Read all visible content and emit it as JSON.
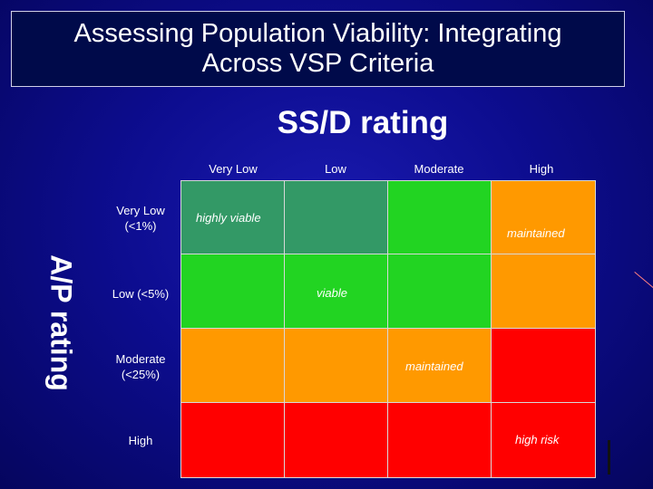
{
  "title": {
    "line1": "Assessing Population Viability:  Integrating",
    "line2": "Across VSP Criteria"
  },
  "x_axis_title": "SS/D rating",
  "y_axis_title": "A/P rating",
  "columns": [
    "Very Low",
    "Low",
    "Moderate",
    "High"
  ],
  "rows": [
    {
      "line1": "Very Low",
      "line2": "(<1%)"
    },
    {
      "line1": "Low (<5%)",
      "line2": ""
    },
    {
      "line1": "Moderate",
      "line2": "(<25%)"
    },
    {
      "line1": "High",
      "line2": ""
    }
  ],
  "zone_labels": {
    "highly_viable": "highly viable",
    "maintained_top": "maintained",
    "viable": "viable",
    "maintained_mid": "maintained",
    "high_risk": "high risk"
  },
  "colors": {
    "highly_viable": "#339966",
    "viable": "#22d422",
    "maintained": "#ff9900",
    "high_risk": "#ff0000"
  },
  "matrix": [
    [
      "highly_viable",
      "highly_viable",
      "viable",
      "maintained"
    ],
    [
      "viable",
      "viable",
      "viable",
      "maintained"
    ],
    [
      "maintained",
      "maintained",
      "maintained",
      "high_risk"
    ],
    [
      "high_risk",
      "high_risk",
      "high_risk",
      "high_risk"
    ]
  ]
}
